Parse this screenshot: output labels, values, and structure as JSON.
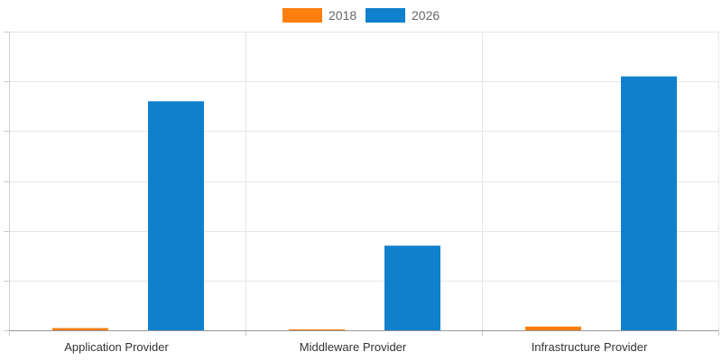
{
  "chart_data": {
    "type": "bar",
    "categories": [
      "Application Provider",
      "Middleware Provider",
      "Infrastructure Provider"
    ],
    "series": [
      {
        "name": "2018",
        "color": "#ff7f0e",
        "values": [
          0.9,
          0.4,
          1.5
        ]
      },
      {
        "name": "2026",
        "color": "#1080cc",
        "values": [
          92,
          34,
          102
        ]
      }
    ],
    "ylim": [
      0,
      120
    ],
    "y_tick_step": 20,
    "grid": true,
    "legend_position": "top-center",
    "title": "",
    "xlabel": "",
    "ylabel": ""
  }
}
